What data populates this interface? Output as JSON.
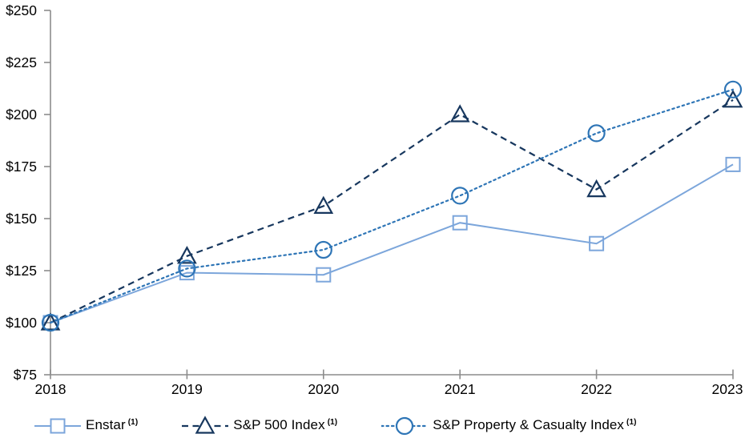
{
  "chart_data": {
    "type": "line",
    "title": "",
    "x_categories": [
      "2018",
      "2019",
      "2020",
      "2021",
      "2022",
      "2023"
    ],
    "y_axis": {
      "tick_labels": [
        "$250",
        "$225",
        "$200",
        "$175",
        "$150",
        "$125",
        "$100",
        "$75"
      ],
      "tick_values": [
        250,
        225,
        200,
        175,
        150,
        125,
        100,
        75
      ],
      "ylim": [
        75,
        250
      ],
      "grid": false
    },
    "legend_position": "bottom",
    "series": [
      {
        "name": "Enstar",
        "footnote": "(1)",
        "marker": "square",
        "line_style": "solid",
        "color": "#7CA6DB",
        "values": [
          100,
          124,
          123,
          148,
          138,
          176
        ]
      },
      {
        "name": "S&P 500 Index",
        "footnote": "(1)",
        "marker": "triangle",
        "line_style": "dashed",
        "color": "#17375E",
        "values": [
          100,
          132,
          156,
          200,
          164,
          207
        ]
      },
      {
        "name": "S&P Property & Casualty Index",
        "footnote": "(1)",
        "marker": "circle",
        "line_style": "dotted",
        "color": "#2E75B6",
        "values": [
          100,
          126,
          135,
          161,
          191,
          212
        ]
      }
    ]
  },
  "style": {
    "axis_color": "#8C8C8C",
    "label_color": "#000000",
    "background": "#FFFFFF"
  }
}
